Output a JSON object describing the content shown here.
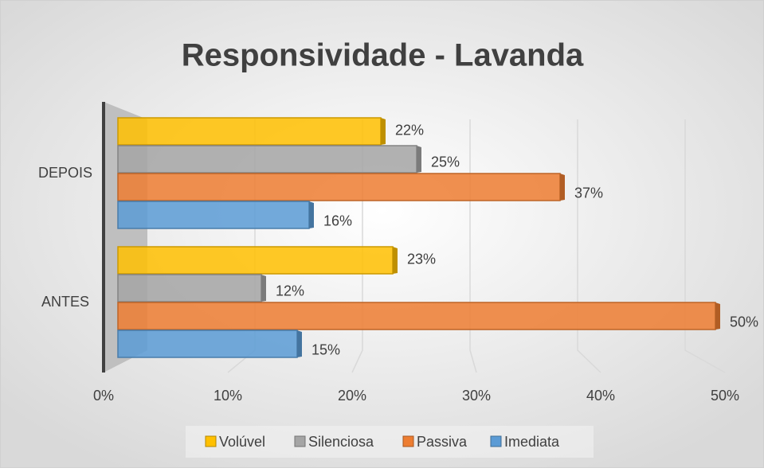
{
  "chart_data": {
    "type": "bar",
    "orientation": "horizontal",
    "title": "Responsividade - Lavanda",
    "categories": [
      "DEPOIS",
      "ANTES"
    ],
    "series": [
      {
        "name": "Volúvel",
        "color": "#ffc000",
        "values": [
          22,
          23
        ],
        "value_labels": [
          "22%",
          "23%"
        ]
      },
      {
        "name": "Silenciosa",
        "color": "#a5a5a5",
        "values": [
          25,
          12
        ],
        "value_labels": [
          "25%",
          "12%"
        ]
      },
      {
        "name": "Passiva",
        "color": "#ed7d31",
        "values": [
          37,
          50
        ],
        "value_labels": [
          "37%",
          "50%"
        ]
      },
      {
        "name": "Imediata",
        "color": "#5b9bd5",
        "values": [
          16,
          15
        ],
        "value_labels": [
          "16%",
          "15%"
        ]
      }
    ],
    "xlim": [
      0,
      50
    ],
    "xticks": [
      {
        "value": 0,
        "label": "0%"
      },
      {
        "value": 10,
        "label": "10%"
      },
      {
        "value": 20,
        "label": "20%"
      },
      {
        "value": 30,
        "label": "30%"
      },
      {
        "value": 40,
        "label": "40%"
      },
      {
        "value": 50,
        "label": "50%"
      }
    ],
    "grid": true,
    "legend": "bottom"
  }
}
